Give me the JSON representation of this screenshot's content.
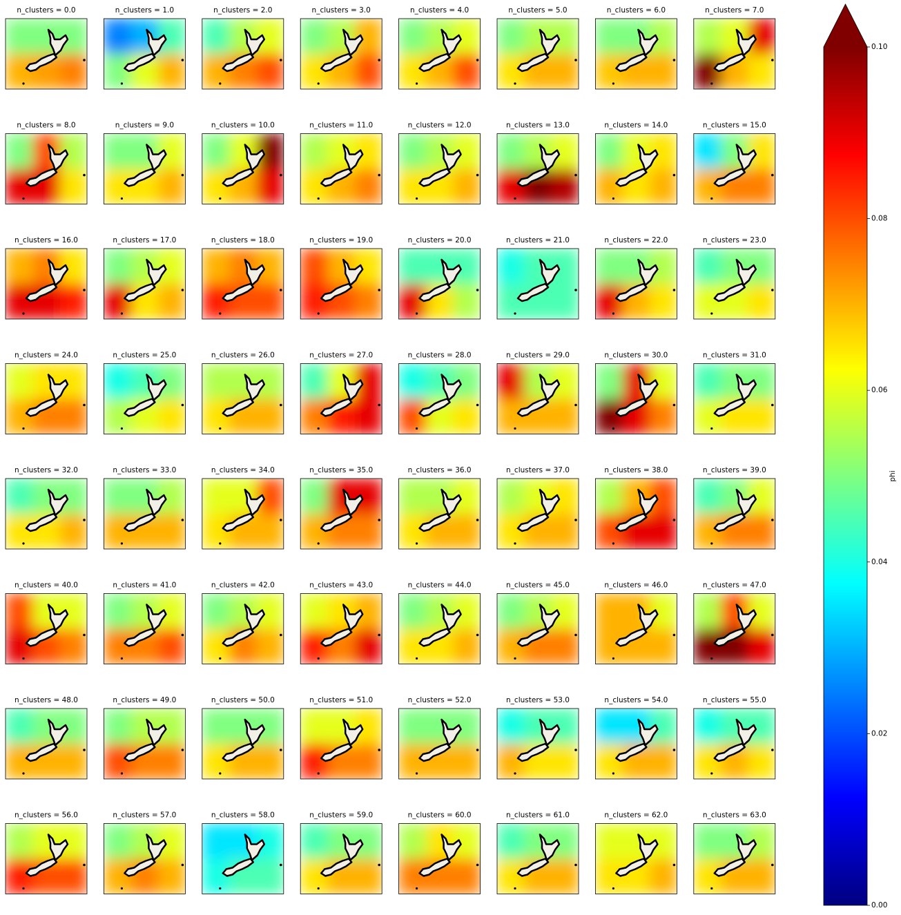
{
  "chart_data": {
    "type": "heatmap-grid",
    "colormap": "jet",
    "colorbar": {
      "label": "phi",
      "lim": [
        0,
        0.1
      ],
      "extend": "max",
      "ticks": [
        {
          "value": 0,
          "label": "0.00"
        },
        {
          "value": 0.02,
          "label": "0.02"
        },
        {
          "value": 0.04,
          "label": "0.04"
        },
        {
          "value": 0.06,
          "label": "0.06"
        },
        {
          "value": 0.08,
          "label": "0.08"
        },
        {
          "value": 0.1,
          "label": "0.10"
        }
      ]
    },
    "panels": [
      {
        "title": "n_clusters = 0.0",
        "values": [
          [
            0.05,
            0.05,
            0.05
          ],
          [
            0.07,
            0.072,
            0.075
          ]
        ]
      },
      {
        "title": "n_clusters = 1.0",
        "values": [
          [
            0.025,
            0.03,
            0.045
          ],
          [
            0.05,
            0.06,
            0.07
          ]
        ]
      },
      {
        "title": "n_clusters = 2.0",
        "values": [
          [
            0.045,
            0.055,
            0.06
          ],
          [
            0.07,
            0.075,
            0.08
          ]
        ]
      },
      {
        "title": "n_clusters = 3.0",
        "values": [
          [
            0.05,
            0.055,
            0.07
          ],
          [
            0.065,
            0.07,
            0.08
          ]
        ]
      },
      {
        "title": "n_clusters = 4.0",
        "values": [
          [
            0.05,
            0.055,
            0.06
          ],
          [
            0.065,
            0.07,
            0.08
          ]
        ]
      },
      {
        "title": "n_clusters = 5.0",
        "values": [
          [
            0.05,
            0.055,
            0.055
          ],
          [
            0.065,
            0.07,
            0.07
          ]
        ]
      },
      {
        "title": "n_clusters = 6.0",
        "values": [
          [
            0.05,
            0.05,
            0.055
          ],
          [
            0.068,
            0.07,
            0.07
          ]
        ]
      },
      {
        "title": "n_clusters = 7.0",
        "values": [
          [
            0.055,
            0.06,
            0.09
          ],
          [
            0.1,
            0.07,
            0.065
          ]
        ]
      },
      {
        "title": "n_clusters = 8.0",
        "values": [
          [
            0.05,
            0.08,
            0.055
          ],
          [
            0.09,
            0.09,
            0.065
          ]
        ]
      },
      {
        "title": "n_clusters = 9.0",
        "values": [
          [
            0.05,
            0.05,
            0.06
          ],
          [
            0.065,
            0.065,
            0.07
          ]
        ]
      },
      {
        "title": "n_clusters = 10.0",
        "values": [
          [
            0.05,
            0.06,
            0.1
          ],
          [
            0.065,
            0.07,
            0.09
          ]
        ]
      },
      {
        "title": "n_clusters = 11.0",
        "values": [
          [
            0.055,
            0.06,
            0.065
          ],
          [
            0.065,
            0.07,
            0.075
          ]
        ]
      },
      {
        "title": "n_clusters = 12.0",
        "values": [
          [
            0.05,
            0.055,
            0.06
          ],
          [
            0.065,
            0.065,
            0.07
          ]
        ]
      },
      {
        "title": "n_clusters = 13.0",
        "values": [
          [
            0.05,
            0.055,
            0.06
          ],
          [
            0.09,
            0.1,
            0.095
          ]
        ]
      },
      {
        "title": "n_clusters = 14.0",
        "values": [
          [
            0.05,
            0.06,
            0.065
          ],
          [
            0.07,
            0.065,
            0.07
          ]
        ]
      },
      {
        "title": "n_clusters = 15.0",
        "values": [
          [
            0.035,
            0.05,
            0.065
          ],
          [
            0.07,
            0.075,
            0.075
          ]
        ]
      },
      {
        "title": "n_clusters = 16.0",
        "values": [
          [
            0.07,
            0.075,
            0.065
          ],
          [
            0.09,
            0.09,
            0.085
          ]
        ]
      },
      {
        "title": "n_clusters = 17.0",
        "values": [
          [
            0.05,
            0.055,
            0.06
          ],
          [
            0.09,
            0.065,
            0.07
          ]
        ]
      },
      {
        "title": "n_clusters = 18.0",
        "values": [
          [
            0.07,
            0.075,
            0.07
          ],
          [
            0.085,
            0.08,
            0.08
          ]
        ]
      },
      {
        "title": "n_clusters = 19.0",
        "values": [
          [
            0.08,
            0.07,
            0.065
          ],
          [
            0.085,
            0.08,
            0.075
          ]
        ]
      },
      {
        "title": "n_clusters = 20.0",
        "values": [
          [
            0.045,
            0.045,
            0.045
          ],
          [
            0.09,
            0.065,
            0.055
          ]
        ]
      },
      {
        "title": "n_clusters = 21.0",
        "values": [
          [
            0.04,
            0.045,
            0.045
          ],
          [
            0.045,
            0.045,
            0.045
          ]
        ]
      },
      {
        "title": "n_clusters = 22.0",
        "values": [
          [
            0.05,
            0.05,
            0.055
          ],
          [
            0.09,
            0.07,
            0.065
          ]
        ]
      },
      {
        "title": "n_clusters = 23.0",
        "values": [
          [
            0.045,
            0.05,
            0.05
          ],
          [
            0.06,
            0.06,
            0.065
          ]
        ]
      },
      {
        "title": "n_clusters = 24.0",
        "values": [
          [
            0.06,
            0.065,
            0.065
          ],
          [
            0.07,
            0.075,
            0.075
          ]
        ]
      },
      {
        "title": "n_clusters = 25.0",
        "values": [
          [
            0.04,
            0.045,
            0.05
          ],
          [
            0.055,
            0.06,
            0.065
          ]
        ]
      },
      {
        "title": "n_clusters = 26.0",
        "values": [
          [
            0.055,
            0.055,
            0.055
          ],
          [
            0.065,
            0.07,
            0.07
          ]
        ]
      },
      {
        "title": "n_clusters = 27.0",
        "values": [
          [
            0.045,
            0.06,
            0.09
          ],
          [
            0.075,
            0.085,
            0.09
          ]
        ]
      },
      {
        "title": "n_clusters = 28.0",
        "values": [
          [
            0.04,
            0.045,
            0.05
          ],
          [
            0.08,
            0.06,
            0.065
          ]
        ]
      },
      {
        "title": "n_clusters = 29.0",
        "values": [
          [
            0.09,
            0.055,
            0.06
          ],
          [
            0.07,
            0.07,
            0.07
          ]
        ]
      },
      {
        "title": "n_clusters = 30.0",
        "values": [
          [
            0.05,
            0.09,
            0.06
          ],
          [
            0.1,
            0.09,
            0.075
          ]
        ]
      },
      {
        "title": "n_clusters = 31.0",
        "values": [
          [
            0.045,
            0.05,
            0.05
          ],
          [
            0.06,
            0.065,
            0.065
          ]
        ]
      },
      {
        "title": "n_clusters = 32.0",
        "values": [
          [
            0.045,
            0.05,
            0.05
          ],
          [
            0.065,
            0.065,
            0.07
          ]
        ]
      },
      {
        "title": "n_clusters = 33.0",
        "values": [
          [
            0.05,
            0.05,
            0.055
          ],
          [
            0.07,
            0.07,
            0.07
          ]
        ]
      },
      {
        "title": "n_clusters = 34.0",
        "values": [
          [
            0.06,
            0.06,
            0.08
          ],
          [
            0.065,
            0.07,
            0.07
          ]
        ]
      },
      {
        "title": "n_clusters = 35.0",
        "values": [
          [
            0.05,
            0.09,
            0.09
          ],
          [
            0.07,
            0.075,
            0.075
          ]
        ]
      },
      {
        "title": "n_clusters = 36.0",
        "values": [
          [
            0.055,
            0.055,
            0.06
          ],
          [
            0.065,
            0.07,
            0.07
          ]
        ]
      },
      {
        "title": "n_clusters = 37.0",
        "values": [
          [
            0.055,
            0.06,
            0.065
          ],
          [
            0.065,
            0.07,
            0.07
          ]
        ]
      },
      {
        "title": "n_clusters = 38.0",
        "values": [
          [
            0.055,
            0.07,
            0.08
          ],
          [
            0.08,
            0.09,
            0.09
          ]
        ]
      },
      {
        "title": "n_clusters = 39.0",
        "values": [
          [
            0.045,
            0.05,
            0.06
          ],
          [
            0.07,
            0.075,
            0.075
          ]
        ]
      },
      {
        "title": "n_clusters = 40.0",
        "values": [
          [
            0.08,
            0.06,
            0.06
          ],
          [
            0.09,
            0.08,
            0.075
          ]
        ]
      },
      {
        "title": "n_clusters = 41.0",
        "values": [
          [
            0.05,
            0.055,
            0.06
          ],
          [
            0.075,
            0.075,
            0.08
          ]
        ]
      },
      {
        "title": "n_clusters = 42.0",
        "values": [
          [
            0.05,
            0.055,
            0.06
          ],
          [
            0.065,
            0.075,
            0.07
          ]
        ]
      },
      {
        "title": "n_clusters = 43.0",
        "values": [
          [
            0.06,
            0.065,
            0.07
          ],
          [
            0.085,
            0.075,
            0.09
          ]
        ]
      },
      {
        "title": "n_clusters = 44.0",
        "values": [
          [
            0.05,
            0.055,
            0.06
          ],
          [
            0.065,
            0.065,
            0.07
          ]
        ]
      },
      {
        "title": "n_clusters = 45.0",
        "values": [
          [
            0.05,
            0.055,
            0.06
          ],
          [
            0.07,
            0.075,
            0.075
          ]
        ]
      },
      {
        "title": "n_clusters = 46.0",
        "values": [
          [
            0.07,
            0.07,
            0.06
          ],
          [
            0.07,
            0.07,
            0.07
          ]
        ]
      },
      {
        "title": "n_clusters = 47.0",
        "values": [
          [
            0.055,
            0.08,
            0.06
          ],
          [
            0.1,
            0.1,
            0.09
          ]
        ]
      },
      {
        "title": "n_clusters = 48.0",
        "values": [
          [
            0.045,
            0.05,
            0.05
          ],
          [
            0.07,
            0.07,
            0.07
          ]
        ]
      },
      {
        "title": "n_clusters = 49.0",
        "values": [
          [
            0.05,
            0.055,
            0.055
          ],
          [
            0.08,
            0.075,
            0.075
          ]
        ]
      },
      {
        "title": "n_clusters = 50.0",
        "values": [
          [
            0.05,
            0.05,
            0.05
          ],
          [
            0.065,
            0.07,
            0.07
          ]
        ]
      },
      {
        "title": "n_clusters = 51.0",
        "values": [
          [
            0.06,
            0.06,
            0.065
          ],
          [
            0.085,
            0.075,
            0.075
          ]
        ]
      },
      {
        "title": "n_clusters = 52.0",
        "values": [
          [
            0.05,
            0.05,
            0.05
          ],
          [
            0.07,
            0.07,
            0.07
          ]
        ]
      },
      {
        "title": "n_clusters = 53.0",
        "values": [
          [
            0.04,
            0.045,
            0.045
          ],
          [
            0.07,
            0.065,
            0.065
          ]
        ]
      },
      {
        "title": "n_clusters = 54.0",
        "values": [
          [
            0.035,
            0.035,
            0.045
          ],
          [
            0.065,
            0.07,
            0.07
          ]
        ]
      },
      {
        "title": "n_clusters = 55.0",
        "values": [
          [
            0.04,
            0.045,
            0.045
          ],
          [
            0.065,
            0.07,
            0.065
          ]
        ]
      },
      {
        "title": "n_clusters = 56.0",
        "values": [
          [
            0.055,
            0.06,
            0.06
          ],
          [
            0.085,
            0.08,
            0.08
          ]
        ]
      },
      {
        "title": "n_clusters = 57.0",
        "values": [
          [
            0.05,
            0.055,
            0.06
          ],
          [
            0.07,
            0.075,
            0.07
          ]
        ]
      },
      {
        "title": "n_clusters = 58.0",
        "values": [
          [
            0.035,
            0.035,
            0.04
          ],
          [
            0.04,
            0.045,
            0.045
          ]
        ]
      },
      {
        "title": "n_clusters = 59.0",
        "values": [
          [
            0.045,
            0.05,
            0.05
          ],
          [
            0.065,
            0.07,
            0.07
          ]
        ]
      },
      {
        "title": "n_clusters = 60.0",
        "values": [
          [
            0.055,
            0.065,
            0.06
          ],
          [
            0.075,
            0.075,
            0.075
          ]
        ]
      },
      {
        "title": "n_clusters = 61.0",
        "values": [
          [
            0.045,
            0.05,
            0.05
          ],
          [
            0.065,
            0.07,
            0.07
          ]
        ]
      },
      {
        "title": "n_clusters = 62.0",
        "values": [
          [
            0.06,
            0.06,
            0.06
          ],
          [
            0.065,
            0.065,
            0.07
          ]
        ]
      },
      {
        "title": "n_clusters = 63.0",
        "values": [
          [
            0.05,
            0.05,
            0.055
          ],
          [
            0.065,
            0.07,
            0.07
          ]
        ]
      }
    ]
  }
}
